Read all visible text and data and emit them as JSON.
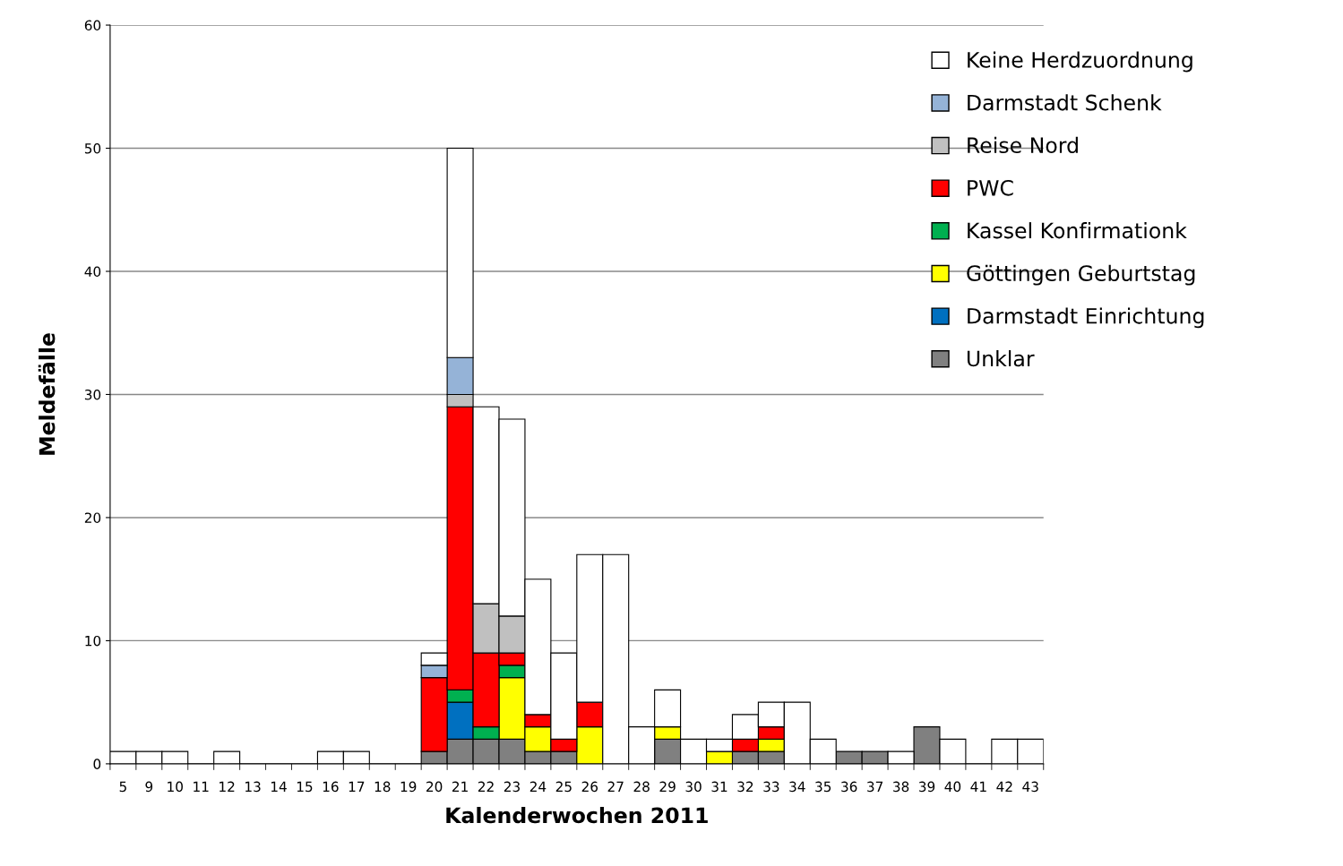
{
  "chart_data": {
    "type": "bar",
    "stacked": true,
    "xlabel": "Kalenderwochen 2011",
    "ylabel": "Meldefälle",
    "categories": [
      "5",
      "9",
      "10",
      "11",
      "12",
      "13",
      "14",
      "15",
      "16",
      "17",
      "18",
      "19",
      "20",
      "21",
      "22",
      "23",
      "24",
      "25",
      "26",
      "27",
      "28",
      "29",
      "30",
      "31",
      "32",
      "33",
      "34",
      "35",
      "36",
      "37",
      "38",
      "39",
      "40",
      "41",
      "42",
      "43"
    ],
    "series": [
      {
        "name": "Unklar",
        "color": "#808080",
        "values": [
          0,
          0,
          0,
          0,
          0,
          0,
          0,
          0,
          0,
          0,
          0,
          0,
          1,
          2,
          2,
          2,
          1,
          1,
          0,
          0,
          0,
          2,
          0,
          0,
          1,
          1,
          0,
          0,
          1,
          1,
          0,
          3,
          0,
          0,
          0,
          0
        ]
      },
      {
        "name": "Darmstadt Einrichtung",
        "color": "#0070c0",
        "values": [
          0,
          0,
          0,
          0,
          0,
          0,
          0,
          0,
          0,
          0,
          0,
          0,
          0,
          3,
          0,
          0,
          0,
          0,
          0,
          0,
          0,
          0,
          0,
          0,
          0,
          0,
          0,
          0,
          0,
          0,
          0,
          0,
          0,
          0,
          0,
          0
        ]
      },
      {
        "name": "Göttingen Geburtstag",
        "color": "#ffff00",
        "values": [
          0,
          0,
          0,
          0,
          0,
          0,
          0,
          0,
          0,
          0,
          0,
          0,
          0,
          0,
          0,
          5,
          2,
          0,
          3,
          0,
          0,
          1,
          0,
          1,
          0,
          1,
          0,
          0,
          0,
          0,
          0,
          0,
          0,
          0,
          0,
          0
        ]
      },
      {
        "name": "Kassel Konfirmationk",
        "color": "#00b050",
        "values": [
          0,
          0,
          0,
          0,
          0,
          0,
          0,
          0,
          0,
          0,
          0,
          0,
          0,
          1,
          1,
          1,
          0,
          0,
          0,
          0,
          0,
          0,
          0,
          0,
          0,
          0,
          0,
          0,
          0,
          0,
          0,
          0,
          0,
          0,
          0,
          0
        ]
      },
      {
        "name": "PWC",
        "color": "#ff0000",
        "values": [
          0,
          0,
          0,
          0,
          0,
          0,
          0,
          0,
          0,
          0,
          0,
          0,
          6,
          23,
          6,
          1,
          1,
          1,
          2,
          0,
          0,
          0,
          0,
          0,
          1,
          1,
          0,
          0,
          0,
          0,
          0,
          0,
          0,
          0,
          0,
          0
        ]
      },
      {
        "name": "Reise Nord",
        "color": "#c0c0c0",
        "values": [
          0,
          0,
          0,
          0,
          0,
          0,
          0,
          0,
          0,
          0,
          0,
          0,
          0,
          1,
          4,
          3,
          0,
          0,
          0,
          0,
          0,
          0,
          0,
          0,
          0,
          0,
          0,
          0,
          0,
          0,
          0,
          0,
          0,
          0,
          0,
          0
        ]
      },
      {
        "name": "Darmstadt Schenk",
        "color": "#95b3d7",
        "values": [
          0,
          0,
          0,
          0,
          0,
          0,
          0,
          0,
          0,
          0,
          0,
          0,
          1,
          3,
          0,
          0,
          0,
          0,
          0,
          0,
          0,
          0,
          0,
          0,
          0,
          0,
          0,
          0,
          0,
          0,
          0,
          0,
          0,
          0,
          0,
          0
        ]
      },
      {
        "name": "Keine Herdzuordnung",
        "color": "#ffffff",
        "values": [
          1,
          1,
          1,
          0,
          1,
          0,
          0,
          0,
          1,
          1,
          0,
          0,
          1,
          17,
          16,
          16,
          11,
          7,
          12,
          17,
          3,
          3,
          2,
          1,
          2,
          2,
          5,
          2,
          0,
          0,
          1,
          0,
          2,
          0,
          2,
          2
        ]
      }
    ],
    "ylim": [
      0,
      60
    ],
    "yticks": [
      0,
      10,
      20,
      30,
      40,
      50,
      60
    ],
    "grid": "y",
    "legend": "top right"
  }
}
